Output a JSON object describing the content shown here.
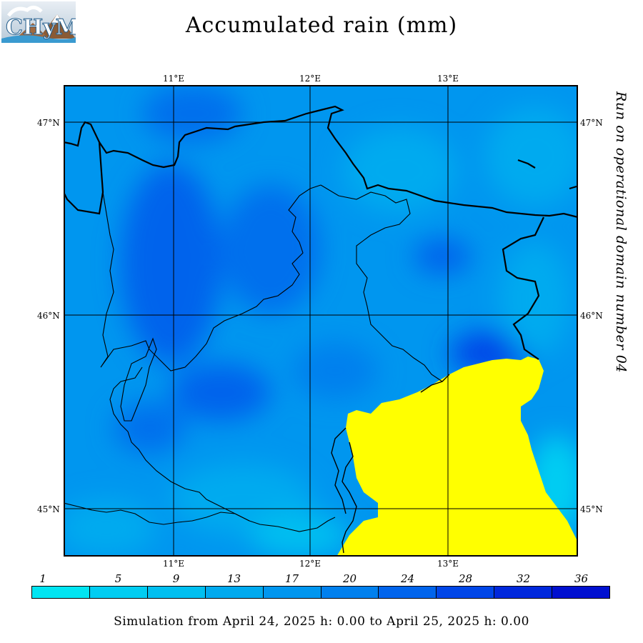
{
  "title": "Accumulated rain (mm)",
  "side_label": "Run on operational domain number 04",
  "footer": "Simulation from April 24, 2025 h: 0.00 to April 25, 2025 h: 0.00",
  "logo": {
    "text": "CHyM"
  },
  "axes": {
    "lon_labels": [
      "11°E",
      "12°E",
      "13°E"
    ],
    "lat_labels": [
      "47°N",
      "46°N",
      "45°N"
    ]
  },
  "legend": {
    "values": [
      "1",
      "5",
      "9",
      "13",
      "17",
      "20",
      "24",
      "28",
      "32",
      "36"
    ],
    "colors": [
      "#00e5f2",
      "#00cdf2",
      "#00bff0",
      "#00aaef",
      "#0096ef",
      "#0080ee",
      "#0064ec",
      "#0046e8",
      "#0028dc",
      "#0010d0"
    ]
  },
  "colors": {
    "sea": "#ffff00",
    "base_rain": "#0096ef",
    "heavy_rain": "#0046e8",
    "light_rain": "#00cdf2"
  }
}
